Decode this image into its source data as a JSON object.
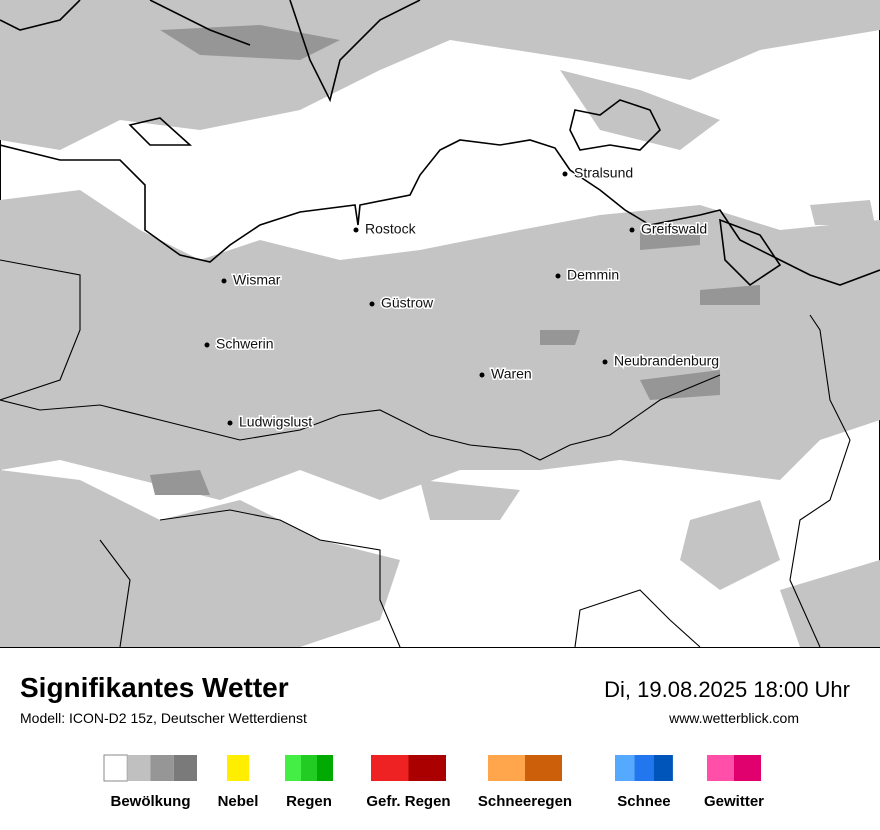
{
  "header": {
    "title": "Signifikantes Wetter",
    "subtitle": "Modell: ICON-D2 15z, Deutscher Wetterdienst",
    "date": "Di, 19.08.2025 18:00 Uhr",
    "website": "www.wetterblick.com"
  },
  "cities": [
    "Stralsund",
    "Rostock",
    "Greifswald",
    "Wismar",
    "Demmin",
    "Güstrow",
    "Schwerin",
    "Neubrandenburg",
    "Waren",
    "Ludwigslust"
  ],
  "legend": {
    "items": [
      {
        "label": "Bewölkung",
        "colors": [
          "#ffffff",
          "#c0c0c0",
          "#969696",
          "#7a7a7a"
        ]
      },
      {
        "label": "Nebel",
        "colors": [
          "#ffee00"
        ]
      },
      {
        "label": "Regen",
        "colors": [
          "#44ee44",
          "#22cc22",
          "#00aa00"
        ]
      },
      {
        "label": "Gefr. Regen",
        "colors": [
          "#ee2222",
          "#aa0000"
        ]
      },
      {
        "label": "Schneeregen",
        "colors": [
          "#ffa64d",
          "#cc5f0a"
        ]
      },
      {
        "label": "Schnee",
        "colors": [
          "#55aaff",
          "#2277ee",
          "#0055bb"
        ]
      },
      {
        "label": "Gewitter",
        "colors": [
          "#ff4fa8",
          "#e0006e"
        ]
      }
    ]
  }
}
